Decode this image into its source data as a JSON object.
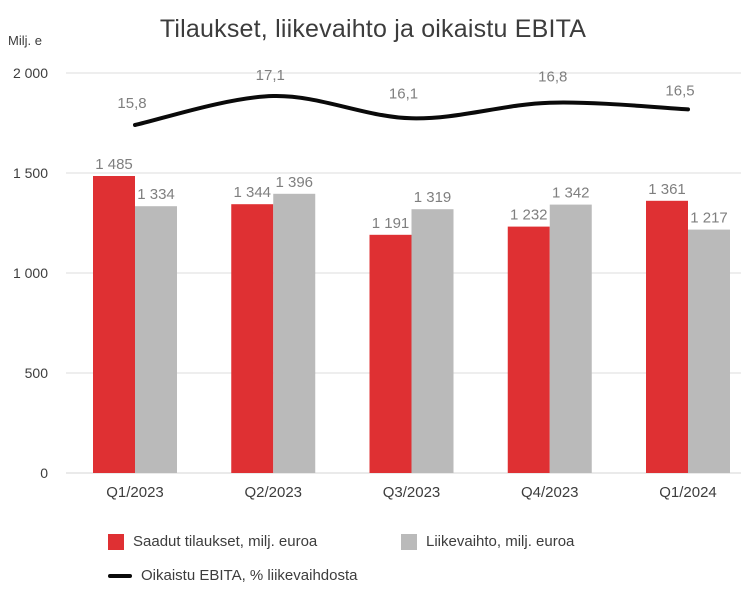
{
  "title": "Tilaukset, liikevaihto ja oikaistu EBITA",
  "y_axis": {
    "unit_label": "Milj. e",
    "ticks": [
      {
        "label": "2 000",
        "value": 2000
      },
      {
        "label": "1 500",
        "value": 1500
      },
      {
        "label": "1 000",
        "value": 1000
      },
      {
        "label": "500",
        "value": 500
      },
      {
        "label": "0",
        "value": 0
      }
    ]
  },
  "chart_data": {
    "type": "bar+line",
    "title": "Tilaukset, liikevaihto ja oikaistu EBITA",
    "categories": [
      "Q1/2023",
      "Q2/2023",
      "Q3/2023",
      "Q4/2023",
      "Q1/2024"
    ],
    "ylabel": "Milj. e",
    "ylim": [
      0,
      2000
    ],
    "grid": "horizontal",
    "legend_position": "bottom",
    "series": [
      {
        "name": "Saadut tilaukset, milj. euroa",
        "type": "bar",
        "color": "#DF3033",
        "values": [
          1485,
          1344,
          1191,
          1232,
          1361
        ],
        "value_labels": [
          "1 485",
          "1 344",
          "1 191",
          "1 232",
          "1 361"
        ]
      },
      {
        "name": "Liikevaihto, milj. euroa",
        "type": "bar",
        "color": "#BABABA",
        "values": [
          1334,
          1396,
          1319,
          1342,
          1217
        ],
        "value_labels": [
          "1 334",
          "1 396",
          "1 319",
          "1 342",
          "1 217"
        ]
      },
      {
        "name": "Oikaistu EBITA, % liikevaihdosta",
        "type": "line",
        "color": "#0a0a0a",
        "values": [
          15.8,
          17.1,
          16.1,
          16.8,
          16.5
        ],
        "value_labels": [
          "15,8",
          "17,1",
          "16,1",
          "16,8",
          "16,5"
        ]
      }
    ],
    "label_color": "#7f7f7f",
    "axis_text_color": "#3d3d3d",
    "gridline_color": "#e3e3e3"
  }
}
